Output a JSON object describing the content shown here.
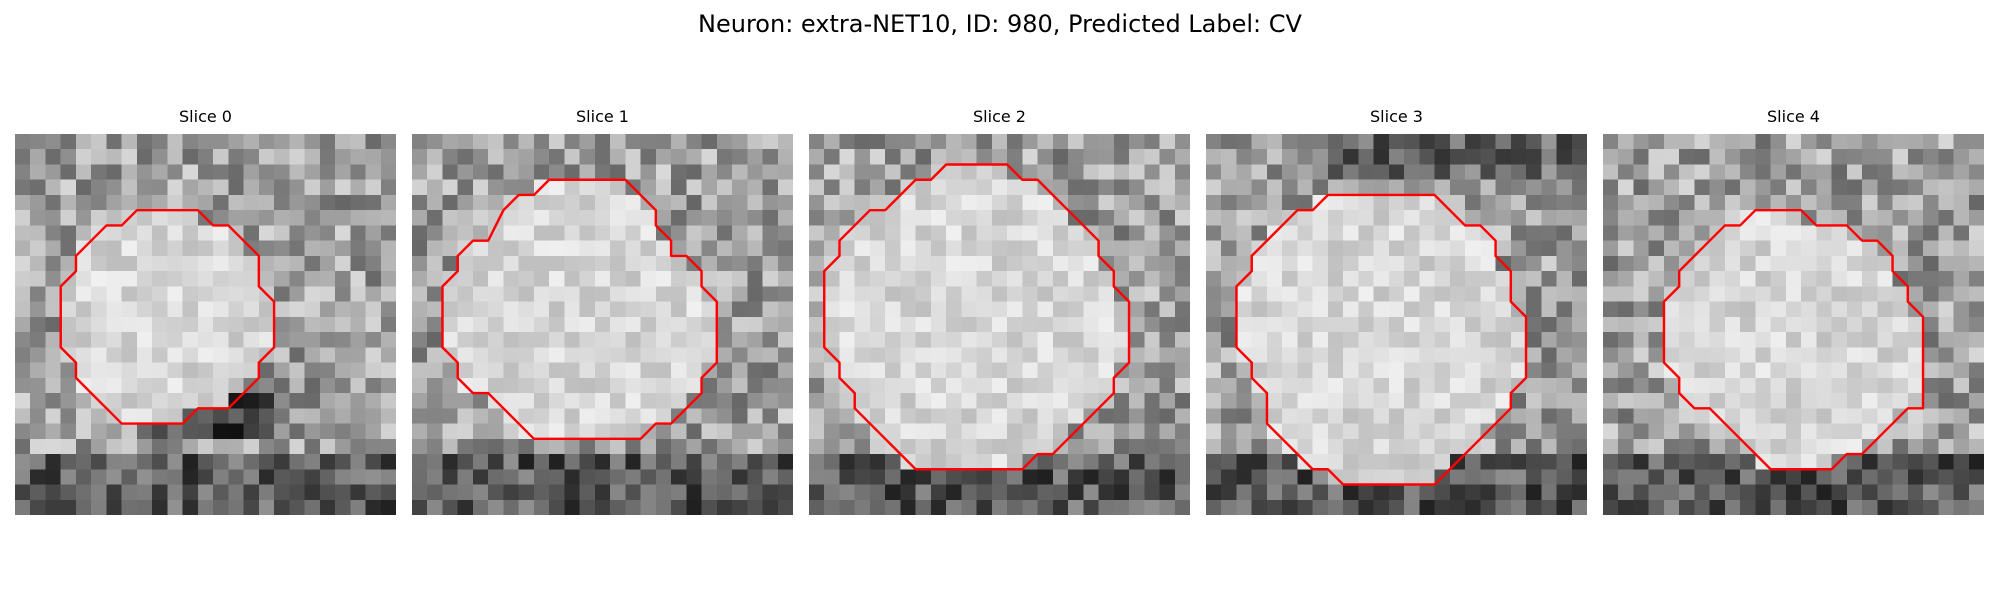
{
  "figure": {
    "title": "Neuron: extra-NET10, ID: 980, Predicted Label: CV"
  },
  "colors": {
    "contour": "#ff0000"
  },
  "panels": [
    {
      "label": "Slice 0",
      "seed": 11,
      "dark_band": "bottom-under-contour",
      "contour": [
        [
          9,
          5
        ],
        [
          12,
          5
        ],
        [
          13,
          6
        ],
        [
          14,
          6
        ],
        [
          15,
          7
        ],
        [
          16,
          8
        ],
        [
          16,
          10
        ],
        [
          17,
          11
        ],
        [
          17,
          14
        ],
        [
          16,
          15
        ],
        [
          16,
          16
        ],
        [
          15,
          17
        ],
        [
          14,
          18
        ],
        [
          12,
          18
        ],
        [
          11,
          19
        ],
        [
          8,
          19
        ],
        [
          7,
          19
        ],
        [
          6,
          18
        ],
        [
          5,
          17
        ],
        [
          4,
          16
        ],
        [
          4,
          15
        ],
        [
          3,
          14
        ],
        [
          3,
          10
        ],
        [
          4,
          9
        ],
        [
          4,
          8
        ],
        [
          5,
          7
        ],
        [
          6,
          6
        ],
        [
          7,
          6
        ],
        [
          8,
          5
        ]
      ]
    },
    {
      "label": "Slice 1",
      "seed": 23,
      "dark_band": "bottom",
      "contour": [
        [
          9,
          3
        ],
        [
          14,
          3
        ],
        [
          15,
          4
        ],
        [
          16,
          5
        ],
        [
          16,
          6
        ],
        [
          17,
          7
        ],
        [
          17,
          8
        ],
        [
          18,
          8
        ],
        [
          19,
          9
        ],
        [
          19,
          10
        ],
        [
          20,
          11
        ],
        [
          20,
          15
        ],
        [
          19,
          16
        ],
        [
          19,
          17
        ],
        [
          18,
          18
        ],
        [
          17,
          19
        ],
        [
          16,
          19
        ],
        [
          15,
          20
        ],
        [
          8,
          20
        ],
        [
          7,
          19
        ],
        [
          6,
          18
        ],
        [
          5,
          17
        ],
        [
          4,
          17
        ],
        [
          3,
          16
        ],
        [
          3,
          15
        ],
        [
          2,
          14
        ],
        [
          2,
          10
        ],
        [
          3,
          9
        ],
        [
          3,
          8
        ],
        [
          4,
          7
        ],
        [
          5,
          7
        ],
        [
          6,
          5
        ],
        [
          7,
          4
        ],
        [
          8,
          4
        ]
      ]
    },
    {
      "label": "Slice 2",
      "seed": 37,
      "dark_band": "bottom",
      "contour": [
        [
          9,
          2
        ],
        [
          13,
          2
        ],
        [
          14,
          3
        ],
        [
          15,
          3
        ],
        [
          16,
          4
        ],
        [
          17,
          5
        ],
        [
          18,
          6
        ],
        [
          19,
          7
        ],
        [
          19,
          8
        ],
        [
          20,
          9
        ],
        [
          20,
          10
        ],
        [
          21,
          11
        ],
        [
          21,
          15
        ],
        [
          20,
          16
        ],
        [
          20,
          17
        ],
        [
          19,
          18
        ],
        [
          18,
          19
        ],
        [
          17,
          20
        ],
        [
          16,
          21
        ],
        [
          15,
          21
        ],
        [
          14,
          22
        ],
        [
          7,
          22
        ],
        [
          6,
          21
        ],
        [
          5,
          20
        ],
        [
          4,
          19
        ],
        [
          3,
          18
        ],
        [
          3,
          17
        ],
        [
          2,
          16
        ],
        [
          2,
          15
        ],
        [
          1,
          14
        ],
        [
          1,
          9
        ],
        [
          2,
          8
        ],
        [
          2,
          7
        ],
        [
          3,
          6
        ],
        [
          4,
          5
        ],
        [
          5,
          5
        ],
        [
          6,
          4
        ],
        [
          7,
          3
        ],
        [
          8,
          3
        ]
      ]
    },
    {
      "label": "Slice 3",
      "seed": 53,
      "dark_band": "top-and-bottom",
      "contour": [
        [
          9,
          4
        ],
        [
          15,
          4
        ],
        [
          16,
          5
        ],
        [
          17,
          6
        ],
        [
          18,
          6
        ],
        [
          19,
          7
        ],
        [
          19,
          8
        ],
        [
          20,
          9
        ],
        [
          20,
          11
        ],
        [
          21,
          12
        ],
        [
          21,
          16
        ],
        [
          20,
          17
        ],
        [
          20,
          18
        ],
        [
          19,
          19
        ],
        [
          18,
          20
        ],
        [
          17,
          21
        ],
        [
          16,
          22
        ],
        [
          15,
          23
        ],
        [
          9,
          23
        ],
        [
          8,
          22
        ],
        [
          7,
          22
        ],
        [
          6,
          21
        ],
        [
          5,
          20
        ],
        [
          4,
          19
        ],
        [
          4,
          17
        ],
        [
          3,
          16
        ],
        [
          3,
          15
        ],
        [
          2,
          14
        ],
        [
          2,
          10
        ],
        [
          3,
          9
        ],
        [
          3,
          8
        ],
        [
          4,
          7
        ],
        [
          5,
          6
        ],
        [
          6,
          5
        ],
        [
          7,
          5
        ],
        [
          8,
          4
        ]
      ]
    },
    {
      "label": "Slice 4",
      "seed": 71,
      "dark_band": "bottom-under-contour",
      "contour": [
        [
          10,
          5
        ],
        [
          13,
          5
        ],
        [
          14,
          6
        ],
        [
          16,
          6
        ],
        [
          17,
          7
        ],
        [
          18,
          7
        ],
        [
          19,
          8
        ],
        [
          19,
          9
        ],
        [
          20,
          10
        ],
        [
          20,
          11
        ],
        [
          21,
          12
        ],
        [
          21,
          18
        ],
        [
          20,
          18
        ],
        [
          19,
          19
        ],
        [
          18,
          20
        ],
        [
          17,
          21
        ],
        [
          16,
          21
        ],
        [
          15,
          22
        ],
        [
          11,
          22
        ],
        [
          10,
          21
        ],
        [
          9,
          20
        ],
        [
          8,
          19
        ],
        [
          7,
          18
        ],
        [
          6,
          18
        ],
        [
          5,
          17
        ],
        [
          5,
          16
        ],
        [
          4,
          15
        ],
        [
          4,
          11
        ],
        [
          5,
          10
        ],
        [
          5,
          9
        ],
        [
          6,
          8
        ],
        [
          7,
          7
        ],
        [
          8,
          6
        ],
        [
          9,
          6
        ]
      ]
    }
  ]
}
